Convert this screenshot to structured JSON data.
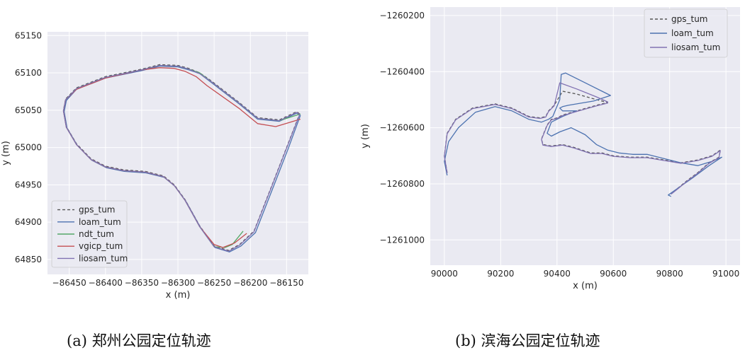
{
  "captions": [
    "(a) 郑州公园定位轨迹",
    "(b) 滨海公园定位轨迹"
  ],
  "colors": {
    "background": "#eaeaf2",
    "grid": "#ffffff",
    "gps_tum": "#555555",
    "loam_tum": "#4c72b0",
    "ndt_tum": "#55a868",
    "vgicp_tum": "#c44e52",
    "liosam_tum": "#8172b2"
  },
  "chart_data": [
    {
      "type": "line",
      "xlabel": "x (m)",
      "ylabel": "y (m)",
      "xlim": [
        -86480,
        -86120
      ],
      "ylim": [
        64830,
        65155
      ],
      "xticks": [
        -86450,
        -86400,
        -86350,
        -86300,
        -86250,
        -86200,
        -86150
      ],
      "xtick_labels": [
        "−86450",
        "−86400",
        "−86350",
        "−86300",
        "−86250",
        "−86200",
        "−86150"
      ],
      "yticks": [
        64850,
        64900,
        64950,
        65000,
        65050,
        65100,
        65150
      ],
      "ytick_labels": [
        "64850",
        "64900",
        "64950",
        "65000",
        "65050",
        "65100",
        "65150"
      ],
      "grid": true,
      "legend": "lower-left",
      "series": [
        {
          "name": "gps_tum",
          "style": "dashed",
          "x": [
            -86132,
            -86136,
            -86160,
            -86190,
            -86215,
            -86255,
            -86270,
            -86285,
            -86300,
            -86325,
            -86350,
            -86400,
            -86440,
            -86455,
            -86458,
            -86454,
            -86440,
            -86420,
            -86400,
            -86375,
            -86345,
            -86320,
            -86305,
            -86290,
            -86270,
            -86250,
            -86230,
            -86215,
            -86195,
            -86170,
            -86150,
            -86132
          ],
          "y": [
            65045,
            65048,
            65037,
            65040,
            65060,
            65090,
            65100,
            65106,
            65110,
            65111,
            65105,
            65095,
            65080,
            65065,
            65050,
            65028,
            65005,
            64985,
            64975,
            64970,
            64968,
            64962,
            64950,
            64930,
            64895,
            64868,
            64862,
            64870,
            64888,
            64950,
            65000,
            65045
          ]
        },
        {
          "name": "loam_tum",
          "style": "solid",
          "x": [
            -86131,
            -86136,
            -86160,
            -86190,
            -86215,
            -86255,
            -86270,
            -86285,
            -86300,
            -86325,
            -86350,
            -86400,
            -86440,
            -86454,
            -86457,
            -86453,
            -86439,
            -86419,
            -86399,
            -86374,
            -86344,
            -86319,
            -86304,
            -86289,
            -86269,
            -86249,
            -86229,
            -86213,
            -86193,
            -86168,
            -86148,
            -86131
          ],
          "y": [
            65043,
            65046,
            65035,
            65038,
            65058,
            65088,
            65099,
            65104,
            65108,
            65109,
            65103,
            65093,
            65078,
            65063,
            65048,
            65026,
            65003,
            64983,
            64973,
            64968,
            64966,
            64960,
            64948,
            64928,
            64893,
            64866,
            64860,
            64868,
            64886,
            64948,
            64998,
            65043
          ]
        },
        {
          "name": "ndt_tum",
          "style": "solid",
          "x": [
            -86131,
            -86160,
            -86190,
            -86215,
            -86255,
            -86270,
            -86285,
            -86300,
            -86325,
            -86350,
            -86400,
            -86440,
            -86455,
            -86458,
            -86454,
            -86440,
            -86420,
            -86400,
            -86375,
            -86345,
            -86320,
            -86305,
            -86290,
            -86270,
            -86250,
            -86235,
            -86225,
            -86210
          ],
          "y": [
            65045,
            65036,
            65039,
            65059,
            65089,
            65100,
            65105,
            65109,
            65110,
            65104,
            65094,
            65079,
            65064,
            65049,
            65027,
            65004,
            64984,
            64974,
            64969,
            64967,
            64961,
            64949,
            64929,
            64894,
            64867,
            64866,
            64870,
            64888
          ]
        },
        {
          "name": "vgicp_tum",
          "style": "solid",
          "x": [
            -86131,
            -86165,
            -86190,
            -86215,
            -86260,
            -86275,
            -86290,
            -86305,
            -86325,
            -86350,
            -86400,
            -86440,
            -86455,
            -86458,
            -86454,
            -86440,
            -86420,
            -86400,
            -86375,
            -86345,
            -86320,
            -86305,
            -86290,
            -86270,
            -86250,
            -86238,
            -86222,
            -86205
          ],
          "y": [
            65038,
            65028,
            65032,
            65052,
            65083,
            65095,
            65102,
            65106,
            65107,
            65104,
            65093,
            65078,
            65064,
            65049,
            65027,
            65004,
            64984,
            64974,
            64969,
            64967,
            64961,
            64949,
            64929,
            64894,
            64870,
            64866,
            64872,
            64885
          ]
        },
        {
          "name": "liosam_tum",
          "style": "solid",
          "x": [
            -86132,
            -86136,
            -86160,
            -86190,
            -86215,
            -86255,
            -86270,
            -86285,
            -86300,
            -86325,
            -86350,
            -86400,
            -86440,
            -86455,
            -86458,
            -86454,
            -86440,
            -86420,
            -86400,
            -86375,
            -86345,
            -86320,
            -86305,
            -86290,
            -86270,
            -86250,
            -86230,
            -86215,
            -86195,
            -86170,
            -86150,
            -86132
          ],
          "y": [
            65044,
            65047,
            65036,
            65039,
            65059,
            65089,
            65099,
            65105,
            65109,
            65110,
            65104,
            65094,
            65079,
            65064,
            65049,
            65027,
            65004,
            64984,
            64974,
            64969,
            64967,
            64961,
            64949,
            64929,
            64894,
            64867,
            64861,
            64869,
            64887,
            64949,
            64999,
            65044
          ]
        }
      ]
    },
    {
      "type": "line",
      "xlabel": "x (m)",
      "ylabel": "y (m)",
      "xlim": [
        89950,
        91050
      ],
      "ylim": [
        -1261090,
        -1260170
      ],
      "xticks": [
        90000,
        90200,
        90400,
        90600,
        90800,
        91000
      ],
      "xtick_labels": [
        "90000",
        "90200",
        "90400",
        "90600",
        "90800",
        "91000"
      ],
      "yticks": [
        -1261000,
        -1260800,
        -1260600,
        -1260400,
        -1260200
      ],
      "ytick_labels": [
        "−1261000",
        "−1260800",
        "−1260600",
        "−1260400",
        "−1260200"
      ],
      "grid": true,
      "legend": "top-right",
      "series": [
        {
          "name": "gps_tum",
          "style": "dashed",
          "x": [
            90010,
            90000,
            90010,
            90040,
            90100,
            90180,
            90240,
            90300,
            90340,
            90360,
            90370,
            90390,
            90420,
            90470,
            90540,
            90580,
            90580,
            90540,
            90470,
            90420,
            90400,
            90380,
            90365,
            90345,
            90350,
            90380,
            90420,
            90460,
            90520,
            90560,
            90600,
            90660,
            90720,
            90780,
            90840,
            90900,
            90950,
            90980,
            90975,
            90940,
            90900,
            90860,
            90830,
            90805
          ],
          "y": [
            -1260760,
            -1260700,
            -1260620,
            -1260570,
            -1260530,
            -1260515,
            -1260530,
            -1260560,
            -1260565,
            -1260560,
            -1260540,
            -1260520,
            -1260470,
            -1260480,
            -1260500,
            -1260510,
            -1260510,
            -1260520,
            -1260540,
            -1260555,
            -1260565,
            -1260570,
            -1260590,
            -1260640,
            -1260660,
            -1260665,
            -1260660,
            -1260670,
            -1260690,
            -1260690,
            -1260700,
            -1260705,
            -1260705,
            -1260715,
            -1260725,
            -1260715,
            -1260700,
            -1260680,
            -1260705,
            -1260725,
            -1260760,
            -1260790,
            -1260815,
            -1260835
          ]
        },
        {
          "name": "loam_tum",
          "style": "solid",
          "x": [
            90010,
            90000,
            90015,
            90050,
            90110,
            90180,
            90240,
            90300,
            90345,
            90370,
            90385,
            90410,
            90415,
            90430,
            90500,
            90560,
            90590,
            90530,
            90440,
            90420,
            90410,
            90420,
            90470,
            90420,
            90380,
            90365,
            90380,
            90410,
            90450,
            90500,
            90540,
            90580,
            90620,
            90670,
            90720,
            90780,
            90840,
            90900,
            90950,
            90985,
            90940,
            90880,
            90830,
            90795,
            90805
          ],
          "y": [
            -1260770,
            -1260720,
            -1260650,
            -1260600,
            -1260545,
            -1260525,
            -1260540,
            -1260570,
            -1260580,
            -1260570,
            -1260560,
            -1260500,
            -1260410,
            -1260405,
            -1260440,
            -1260470,
            -1260485,
            -1260505,
            -1260520,
            -1260525,
            -1260530,
            -1260540,
            -1260540,
            -1260560,
            -1260580,
            -1260620,
            -1260630,
            -1260615,
            -1260600,
            -1260625,
            -1260660,
            -1260680,
            -1260690,
            -1260695,
            -1260695,
            -1260710,
            -1260725,
            -1260735,
            -1260720,
            -1260705,
            -1260735,
            -1260780,
            -1260815,
            -1260840,
            -1260845
          ]
        },
        {
          "name": "liosam_tum",
          "style": "solid",
          "x": [
            90010,
            90000,
            90010,
            90040,
            90100,
            90180,
            90240,
            90300,
            90340,
            90360,
            90370,
            90390,
            90410,
            90470,
            90540,
            90580,
            90580,
            90540,
            90470,
            90420,
            90400,
            90380,
            90365,
            90345,
            90350,
            90380,
            90420,
            90460,
            90520,
            90560,
            90600,
            90660,
            90720,
            90780,
            90840,
            90900,
            90950,
            90980,
            90975,
            90940,
            90900,
            90860,
            90830,
            90805
          ],
          "y": [
            -1260762,
            -1260702,
            -1260622,
            -1260572,
            -1260532,
            -1260517,
            -1260532,
            -1260562,
            -1260567,
            -1260562,
            -1260542,
            -1260522,
            -1260440,
            -1260462,
            -1260490,
            -1260508,
            -1260512,
            -1260522,
            -1260542,
            -1260557,
            -1260567,
            -1260572,
            -1260592,
            -1260642,
            -1260662,
            -1260667,
            -1260662,
            -1260672,
            -1260692,
            -1260692,
            -1260702,
            -1260707,
            -1260707,
            -1260717,
            -1260727,
            -1260717,
            -1260702,
            -1260682,
            -1260707,
            -1260727,
            -1260762,
            -1260792,
            -1260817,
            -1260837
          ]
        }
      ]
    }
  ]
}
